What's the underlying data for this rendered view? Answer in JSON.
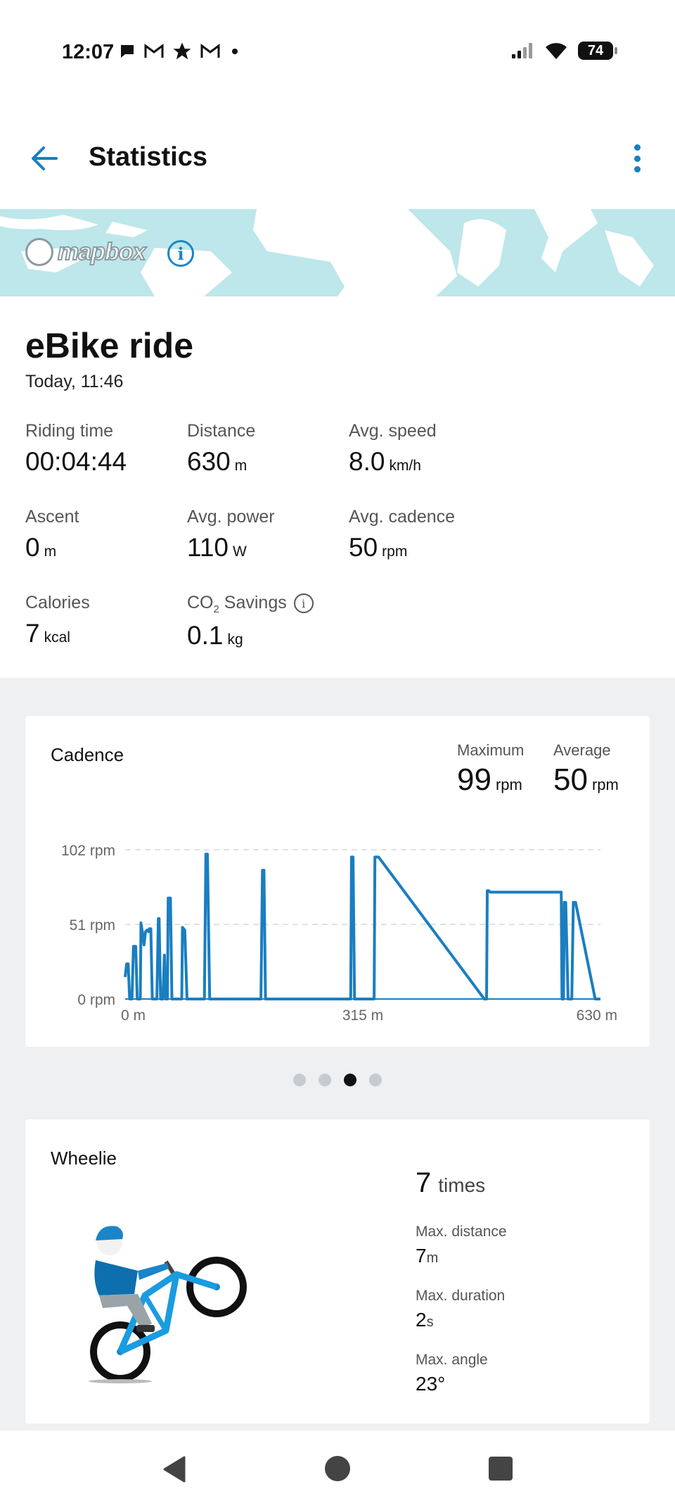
{
  "status_bar": {
    "time": "12:07",
    "battery": "74",
    "left_icons": [
      "chat-icon",
      "gmail-icon",
      "star-icon",
      "gmail-icon",
      "dot-icon"
    ],
    "right_icons": [
      "signal-icon",
      "wifi-icon",
      "battery-icon"
    ]
  },
  "header": {
    "title": "Statistics",
    "back_icon": "arrow-left-icon",
    "menu_icon": "more-vertical-icon",
    "accent_color": "#1a7ec0"
  },
  "map": {
    "attribution": "mapbox",
    "water_color": "#bde7ea"
  },
  "ride": {
    "title": "eBike ride",
    "date": "Today, 11:46"
  },
  "stats": [
    {
      "label": "Riding time",
      "value": "00:04:44",
      "unit": ""
    },
    {
      "label": "Distance",
      "value": "630",
      "unit": "m"
    },
    {
      "label": "Avg. speed",
      "value": "8.0",
      "unit": "km/h"
    },
    {
      "label": "Ascent",
      "value": "0",
      "unit": "m"
    },
    {
      "label": "Avg. power",
      "value": "110",
      "unit": "W"
    },
    {
      "label": "Avg. cadence",
      "value": "50",
      "unit": "rpm"
    },
    {
      "label": "Calories",
      "value": "7",
      "unit": "kcal"
    },
    {
      "label_main": "CO",
      "label_sub": "2",
      "label_rest": " Savings",
      "value": "0.1",
      "unit": "kg"
    }
  ],
  "cadence_card": {
    "title": "Cadence",
    "maximum_label": "Maximum",
    "maximum_value": "99",
    "maximum_unit": "rpm",
    "average_label": "Average",
    "average_value": "50",
    "average_unit": "rpm"
  },
  "chart_data": {
    "type": "line",
    "title": "Cadence",
    "y_tick_labels": [
      "0 rpm",
      "51 rpm",
      "102 rpm"
    ],
    "y_ticks": [
      0,
      51,
      102
    ],
    "x_tick_labels": [
      "0 m",
      "315 m",
      "630 m"
    ],
    "x_ticks": [
      0,
      315,
      630
    ],
    "xlim": [
      0,
      630
    ],
    "ylim": [
      0,
      102
    ],
    "grid": true,
    "color": "#1a7ec0",
    "series": [
      {
        "x": [
          0,
          2,
          4,
          6,
          9,
          11,
          14,
          16,
          20,
          21,
          23,
          25,
          27,
          29,
          31,
          32,
          34,
          36,
          37,
          42,
          44,
          45,
          47,
          48,
          50,
          52,
          54,
          56,
          57,
          60,
          62,
          64,
          65,
          75,
          76,
          79,
          82,
          105,
          107,
          109,
          112,
          180,
          182,
          184,
          186,
          299,
          300,
          302,
          304,
          330,
          331,
          334,
          336,
          476,
          477,
          479,
          480,
          482,
          484,
          578,
          579,
          581,
          582,
          584,
          587,
          589,
          592,
          594,
          597,
          623,
          625,
          627,
          630
        ],
        "y": [
          15,
          24,
          24,
          0,
          0,
          36,
          36,
          0,
          0,
          52,
          45,
          37,
          46,
          47,
          46,
          48,
          48,
          0,
          0,
          0,
          55,
          55,
          0,
          0,
          0,
          30,
          0,
          0,
          69,
          69,
          0,
          0,
          0,
          0,
          49,
          47,
          0,
          0,
          99,
          99,
          0,
          0,
          88,
          88,
          0,
          0,
          97,
          97,
          0,
          0,
          97,
          97,
          97,
          0,
          0,
          0,
          74,
          74,
          73,
          73,
          0,
          0,
          66,
          66,
          0,
          0,
          0,
          66,
          66,
          0,
          0,
          0,
          0
        ]
      }
    ]
  },
  "pager": {
    "count": 4,
    "active": 2
  },
  "wheelie_card": {
    "title": "Wheelie",
    "times_value": "7",
    "times_unit": "times",
    "max_distance_label": "Max. distance",
    "max_distance_value": "7",
    "max_distance_unit": "m",
    "max_duration_label": "Max. duration",
    "max_duration_value": "2",
    "max_duration_unit": "s",
    "max_angle_label": "Max. angle",
    "max_angle_value": "23°",
    "illustration_icon": "wheelie-rider-icon"
  },
  "nav_bar": {
    "icons": [
      "back-triangle-icon",
      "home-circle-icon",
      "recents-square-icon"
    ]
  }
}
